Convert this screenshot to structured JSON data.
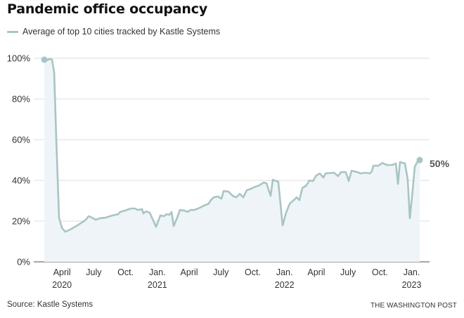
{
  "chart_data": {
    "type": "area",
    "title": "Pandemic office occupancy",
    "legend": [
      {
        "label": "Average of top 10 cities tracked by Kastle Systems",
        "color": "#a9c4c4"
      }
    ],
    "legend_position": "top-left",
    "xlabel": "",
    "ylabel": "",
    "x_units": "months since Jan. 1, 2020",
    "xlim": [
      0,
      37.2
    ],
    "ylim": [
      0,
      100
    ],
    "yticks": [
      0,
      20,
      40,
      60,
      80,
      100
    ],
    "ytick_labels": [
      "0%",
      "20%",
      "40%",
      "60%",
      "80%",
      "100%"
    ],
    "xticks": [
      {
        "x": 3,
        "label": "April",
        "year": "2020"
      },
      {
        "x": 6,
        "label": "July",
        "year": ""
      },
      {
        "x": 9,
        "label": "Oct.",
        "year": ""
      },
      {
        "x": 12,
        "label": "Jan.",
        "year": "2021"
      },
      {
        "x": 15,
        "label": "April",
        "year": ""
      },
      {
        "x": 18,
        "label": "July",
        "year": ""
      },
      {
        "x": 21,
        "label": "Oct.",
        "year": ""
      },
      {
        "x": 24,
        "label": "Jan.",
        "year": "2022"
      },
      {
        "x": 27,
        "label": "April",
        "year": ""
      },
      {
        "x": 30,
        "label": "July",
        "year": ""
      },
      {
        "x": 33,
        "label": "Oct.",
        "year": ""
      },
      {
        "x": 36,
        "label": "Jan.",
        "year": "2023"
      }
    ],
    "grid": true,
    "end_label": "50%",
    "series": [
      {
        "name": "Average of top 10 cities tracked by Kastle Systems",
        "color": "#a9c4c4",
        "fill": "#eef4f7",
        "x": [
          1.33,
          1.6,
          1.8,
          2.06,
          2.26,
          2.46,
          2.72,
          3.0,
          3.32,
          3.78,
          4.45,
          4.98,
          5.24,
          5.5,
          5.84,
          6.17,
          6.57,
          7.1,
          7.76,
          8.3,
          8.49,
          8.96,
          9.49,
          9.89,
          10.15,
          10.55,
          10.68,
          10.95,
          11.28,
          11.88,
          12.28,
          12.61,
          12.87,
          13.14,
          13.34,
          13.54,
          13.87,
          14.13,
          14.53,
          14.86,
          15.13,
          15.46,
          15.86,
          16.39,
          16.85,
          17.05,
          17.32,
          17.72,
          18.05,
          18.25,
          18.71,
          19.11,
          19.44,
          19.77,
          20.11,
          20.44,
          20.84,
          21.23,
          21.63,
          22.03,
          22.3,
          22.69,
          22.89,
          23.42,
          23.82,
          24.15,
          24.49,
          24.88,
          25.15,
          25.41,
          25.68,
          26.08,
          26.34,
          26.68,
          27.0,
          27.34,
          27.67,
          27.87,
          28.67,
          29.06,
          29.33,
          29.79,
          30.06,
          30.33,
          30.86,
          31.19,
          31.65,
          32.05,
          32.25,
          32.38,
          32.85,
          33.24,
          33.64,
          34.17,
          34.51,
          34.71,
          34.9,
          35.37,
          35.63,
          35.83,
          36.1,
          36.3,
          36.57,
          36.76
        ],
        "values": [
          99.3,
          99,
          99.7,
          99.3,
          93,
          59.7,
          21.7,
          16.6,
          14.8,
          15.9,
          17.9,
          19.7,
          20.7,
          22.4,
          21.7,
          20.7,
          21.4,
          21.7,
          22.8,
          23.4,
          24.5,
          25.2,
          26.2,
          26.2,
          25.5,
          25.9,
          23.8,
          24.8,
          24.1,
          17.2,
          22.8,
          22.4,
          23.4,
          23.1,
          24.5,
          17.6,
          21.7,
          25.5,
          25.2,
          24.5,
          25.5,
          25.5,
          26.2,
          27.6,
          28.6,
          30.3,
          31.7,
          32.1,
          31.0,
          34.8,
          34.5,
          32.4,
          31.7,
          33.4,
          31.7,
          35.2,
          35.9,
          36.9,
          37.6,
          39.0,
          38.6,
          32.4,
          40.3,
          39.3,
          17.9,
          24.1,
          28.6,
          30.3,
          31.7,
          30.3,
          36.2,
          37.6,
          40.0,
          39.7,
          42.4,
          43.4,
          41.4,
          43.4,
          43.8,
          42.1,
          44.1,
          44.1,
          39.7,
          44.8,
          44.1,
          43.4,
          43.8,
          43.4,
          44.5,
          47.2,
          47.2,
          48.6,
          47.6,
          47.6,
          48.3,
          38.3,
          49.0,
          48.3,
          40.7,
          21.4,
          35.5,
          46.9,
          49.3,
          50
        ]
      }
    ]
  },
  "footer": {
    "source": "Source: Kastle Systems",
    "credit": "THE WASHINGTON POST"
  }
}
